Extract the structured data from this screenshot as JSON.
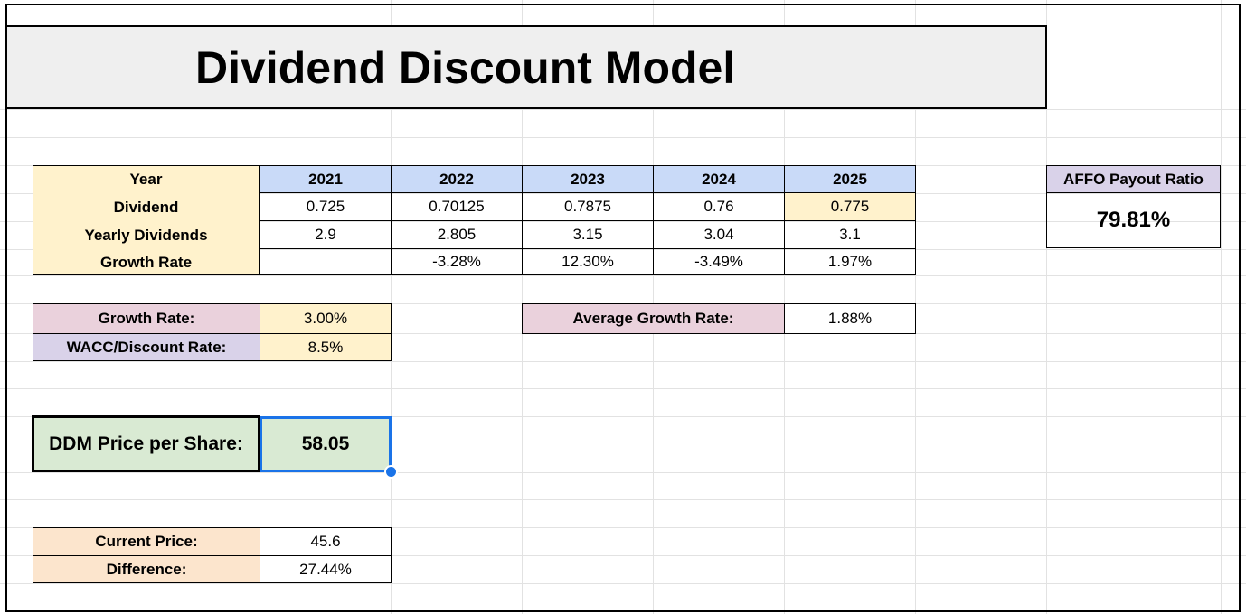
{
  "title": "Dividend Discount Model",
  "table": {
    "header_label": "Year",
    "years": [
      "2021",
      "2022",
      "2023",
      "2024",
      "2025"
    ],
    "rows": [
      {
        "label": "Dividend",
        "values": [
          "0.725",
          "0.70125",
          "0.7875",
          "0.76",
          "0.775"
        ]
      },
      {
        "label": "Yearly Dividends",
        "values": [
          "2.9",
          "2.805",
          "3.15",
          "3.04",
          "3.1"
        ]
      },
      {
        "label": "Growth Rate",
        "values": [
          "",
          "-3.28%",
          "12.30%",
          "-3.49%",
          "1.97%"
        ]
      }
    ]
  },
  "affo": {
    "label": "AFFO Payout Ratio",
    "value": "79.81%"
  },
  "inputs": {
    "growth_label": "Growth Rate:",
    "growth_value": "3.00%",
    "wacc_label": "WACC/Discount Rate:",
    "wacc_value": "8.5%"
  },
  "average": {
    "label": "Average Growth Rate:",
    "value": "1.88%"
  },
  "ddm": {
    "label": "DDM Price per Share:",
    "value": "58.05"
  },
  "price": {
    "current_label": "Current Price:",
    "current_value": "45.6",
    "diff_label": "Difference:",
    "diff_value": "27.44%"
  },
  "colors": {
    "label_yellow": "#fff2cc",
    "header_blue": "#c9daf8",
    "pink": "#ead1dc",
    "lavender": "#d9d2e9",
    "orange": "#fce5cd",
    "green": "#d9ead3",
    "selection_blue": "#1a73e8",
    "title_gray": "#efefef"
  }
}
